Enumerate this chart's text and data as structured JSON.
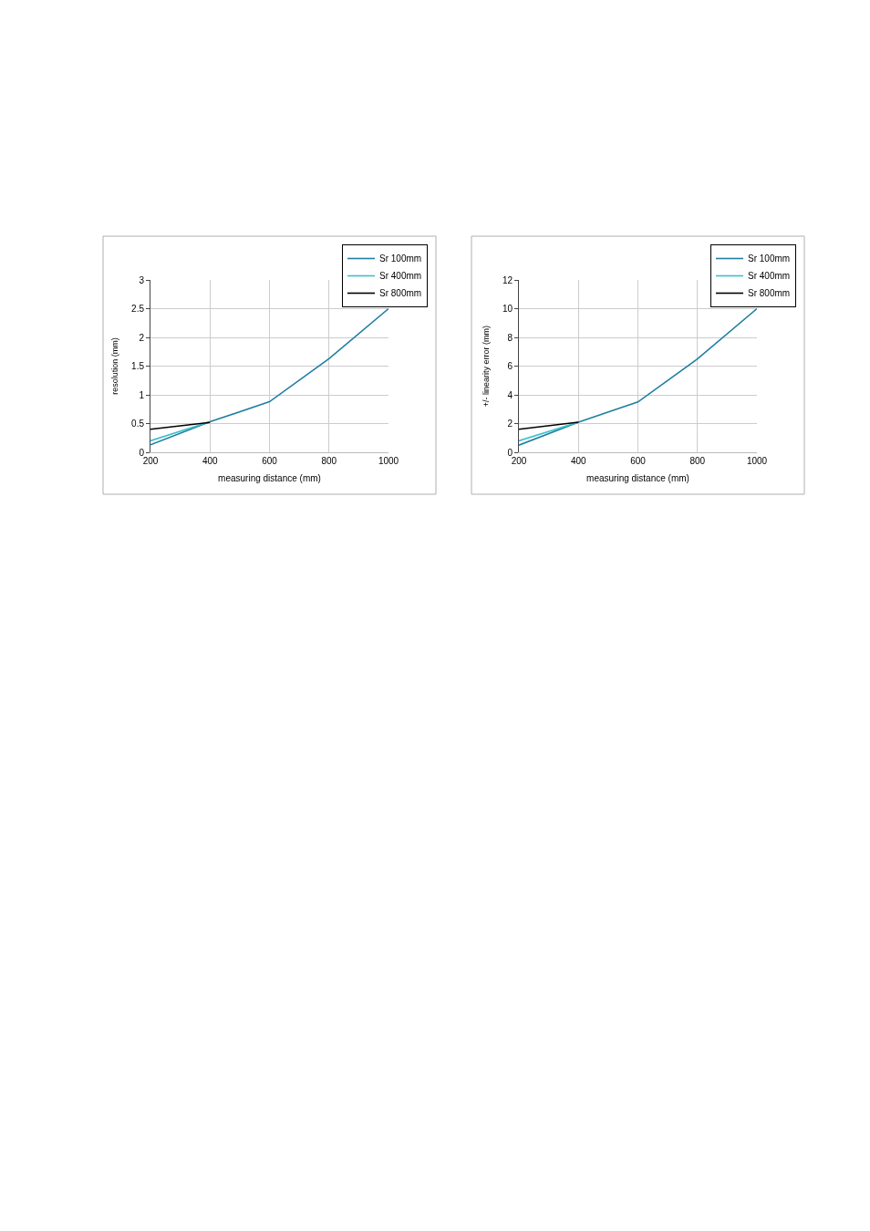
{
  "chart_data": [
    {
      "type": "line",
      "xlabel": "measuring distance (mm)",
      "ylabel": "resolution (mm)",
      "series": [
        {
          "name": "Sr 100mm",
          "color": "#1f7fa3",
          "x": [
            200,
            400,
            600,
            800,
            1000
          ],
          "values": [
            0.13,
            0.53,
            0.88,
            1.63,
            2.5
          ]
        },
        {
          "name": "Sr 400mm",
          "color": "#3cbfcc",
          "x": [
            200,
            400
          ],
          "values": [
            0.2,
            0.53
          ]
        },
        {
          "name": "Sr 800mm",
          "color": "#000000",
          "x": [
            200,
            400
          ],
          "values": [
            0.4,
            0.52
          ]
        }
      ],
      "xlim": [
        200,
        1000
      ],
      "xticks": [
        200,
        400,
        600,
        800,
        1000
      ],
      "ylim": [
        0,
        3
      ],
      "yticks": [
        0,
        0.5,
        1,
        1.5,
        2,
        2.5,
        3
      ],
      "grid": true,
      "legend": "top right",
      "line_style": "solid"
    },
    {
      "type": "line",
      "xlabel": "measuring distance (mm)",
      "ylabel": "+/- linearity error (mm)",
      "series": [
        {
          "name": "Sr 100mm",
          "color": "#1f7fa3",
          "x": [
            200,
            400,
            600,
            800,
            1000
          ],
          "values": [
            0.5,
            2.1,
            3.5,
            6.5,
            10
          ]
        },
        {
          "name": "Sr 400mm",
          "color": "#3cbfcc",
          "x": [
            200,
            400
          ],
          "values": [
            0.8,
            2.1
          ]
        },
        {
          "name": "Sr 800mm",
          "color": "#000000",
          "x": [
            200,
            400
          ],
          "values": [
            1.6,
            2.1
          ]
        }
      ],
      "xlim": [
        200,
        1000
      ],
      "xticks": [
        200,
        400,
        600,
        800,
        1000
      ],
      "ylim": [
        0,
        12
      ],
      "yticks": [
        0,
        2,
        4,
        6,
        8,
        10,
        12
      ],
      "grid": true,
      "legend": "top right",
      "line_style": "solid"
    }
  ]
}
